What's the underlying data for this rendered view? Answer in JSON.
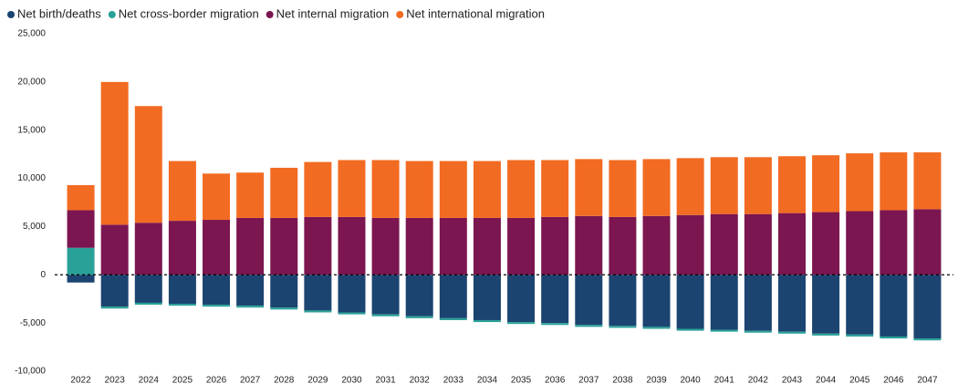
{
  "chart_data": {
    "type": "bar",
    "stacked": true,
    "categories": [
      "2022",
      "2023",
      "2024",
      "2025",
      "2026",
      "2027",
      "2028",
      "2029",
      "2030",
      "2031",
      "2032",
      "2033",
      "2034",
      "2035",
      "2036",
      "2037",
      "2038",
      "2039",
      "2040",
      "2041",
      "2042",
      "2043",
      "2044",
      "2045",
      "2046",
      "2047"
    ],
    "series": [
      {
        "name": "Net birth/deaths",
        "color": "#1b4470",
        "values": [
          -800,
          -3300,
          -2900,
          -3000,
          -3100,
          -3200,
          -3400,
          -3700,
          -3900,
          -4100,
          -4300,
          -4500,
          -4700,
          -4900,
          -5000,
          -5200,
          -5300,
          -5400,
          -5600,
          -5700,
          -5800,
          -5900,
          -6100,
          -6200,
          -6400,
          -6600
        ]
      },
      {
        "name": "Net cross-border migration",
        "color": "#2aa198",
        "values": [
          2800,
          -200,
          -200,
          -200,
          -200,
          -200,
          -200,
          -200,
          -200,
          -200,
          -200,
          -200,
          -200,
          -200,
          -200,
          -200,
          -200,
          -200,
          -200,
          -200,
          -200,
          -200,
          -200,
          -200,
          -200,
          -200
        ]
      },
      {
        "name": "Net internal migration",
        "color": "#7b1650",
        "values": [
          3900,
          5200,
          5400,
          5600,
          5700,
          5900,
          5900,
          6000,
          6000,
          5900,
          5900,
          5900,
          5900,
          5900,
          6000,
          6100,
          6000,
          6100,
          6200,
          6300,
          6300,
          6400,
          6500,
          6600,
          6700,
          6800
        ]
      },
      {
        "name": "Net international migration",
        "color": "#f26b22",
        "values": [
          2600,
          14800,
          12100,
          6200,
          4800,
          4700,
          5200,
          5700,
          5900,
          6000,
          5900,
          5900,
          5900,
          6000,
          5900,
          5900,
          5900,
          5900,
          5900,
          5900,
          5900,
          5900,
          5900,
          6000,
          6000,
          5900
        ]
      }
    ],
    "ylim": [
      -10000,
      25000
    ],
    "yticks": [
      {
        "value": -10000,
        "label": "-10,000"
      },
      {
        "value": -5000,
        "label": "-5,000"
      },
      0,
      {
        "value": 5000,
        "label": "5,000"
      },
      {
        "value": 10000,
        "label": "10,000"
      },
      {
        "value": 15000,
        "label": "15,000"
      },
      {
        "value": 20000,
        "label": "20,000"
      },
      {
        "value": 25000,
        "label": "25,000"
      }
    ],
    "grid": false,
    "legend": "top-left"
  }
}
